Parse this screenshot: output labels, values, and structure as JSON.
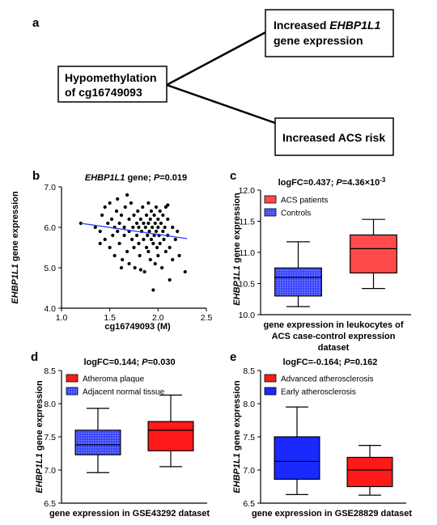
{
  "panel_a": {
    "label": "a",
    "node_center": "Hypomethylation of cg16749093",
    "node_center_lines": [
      "Hypomethylation",
      "of cg16749093"
    ],
    "node_top_lines": [
      "Increased ",
      "EHBP1L1",
      "gene expression"
    ],
    "node_bottom": "Increased ACS risk"
  },
  "colors": {
    "blue": "#2f3cff",
    "red": "#ff1a1a",
    "red_light": "#ff4a4a",
    "black": "#000000"
  },
  "chart_data": [
    {
      "panel": "b",
      "type": "scatter",
      "title_gene": "EHBP1L1",
      "title_rest": " gene; ",
      "title_p": "P",
      "title_pval": "=0.019",
      "xlabel": "cg16749093 (M)",
      "ylabel_gene": "EHBP1L1",
      "ylabel_rest": " gene expression",
      "xlim": [
        1.0,
        2.5
      ],
      "ylim": [
        4.0,
        7.0
      ],
      "xticks": [
        "1.0",
        "1.5",
        "2.0",
        "2.5"
      ],
      "yticks": [
        "4.0",
        "5.0",
        "6.0",
        "7.0"
      ],
      "xtick_values": [
        1.0,
        1.5,
        2.0,
        2.5
      ],
      "ytick_values": [
        4.0,
        5.0,
        6.0,
        7.0
      ],
      "fit_line": {
        "x": [
          1.2,
          2.3
        ],
        "y": [
          6.1,
          5.72
        ]
      },
      "points": [
        [
          1.2,
          6.1
        ],
        [
          1.35,
          6.0
        ],
        [
          1.4,
          5.9
        ],
        [
          1.42,
          6.3
        ],
        [
          1.45,
          5.7
        ],
        [
          1.48,
          6.1
        ],
        [
          1.5,
          5.5
        ],
        [
          1.5,
          6.6
        ],
        [
          1.52,
          6.2
        ],
        [
          1.53,
          5.8
        ],
        [
          1.55,
          6.0
        ],
        [
          1.55,
          5.3
        ],
        [
          1.57,
          6.4
        ],
        [
          1.58,
          5.9
        ],
        [
          1.6,
          6.1
        ],
        [
          1.6,
          5.6
        ],
        [
          1.62,
          6.3
        ],
        [
          1.63,
          5.2
        ],
        [
          1.65,
          6.0
        ],
        [
          1.65,
          5.8
        ],
        [
          1.66,
          6.5
        ],
        [
          1.68,
          5.4
        ],
        [
          1.7,
          6.2
        ],
        [
          1.7,
          5.9
        ],
        [
          1.7,
          5.1
        ],
        [
          1.72,
          6.6
        ],
        [
          1.73,
          5.7
        ],
        [
          1.74,
          6.0
        ],
        [
          1.75,
          5.5
        ],
        [
          1.75,
          6.3
        ],
        [
          1.76,
          5.0
        ],
        [
          1.78,
          6.1
        ],
        [
          1.78,
          5.8
        ],
        [
          1.79,
          6.4
        ],
        [
          1.8,
          5.6
        ],
        [
          1.8,
          6.0
        ],
        [
          1.81,
          5.3
        ],
        [
          1.82,
          6.2
        ],
        [
          1.83,
          5.9
        ],
        [
          1.84,
          6.5
        ],
        [
          1.85,
          5.7
        ],
        [
          1.85,
          6.1
        ],
        [
          1.86,
          4.9
        ],
        [
          1.87,
          6.0
        ],
        [
          1.88,
          5.5
        ],
        [
          1.88,
          6.3
        ],
        [
          1.89,
          5.8
        ],
        [
          1.9,
          6.1
        ],
        [
          1.9,
          5.4
        ],
        [
          1.9,
          6.6
        ],
        [
          1.91,
          5.9
        ],
        [
          1.92,
          5.2
        ],
        [
          1.92,
          6.2
        ],
        [
          1.93,
          5.7
        ],
        [
          1.93,
          6.4
        ],
        [
          1.94,
          6.0
        ],
        [
          1.95,
          5.6
        ],
        [
          1.95,
          4.45
        ],
        [
          1.96,
          6.3
        ],
        [
          1.96,
          5.8
        ],
        [
          1.97,
          5.1
        ],
        [
          1.97,
          6.1
        ],
        [
          1.98,
          5.9
        ],
        [
          1.98,
          6.5
        ],
        [
          1.99,
          5.5
        ],
        [
          2.0,
          6.0
        ],
        [
          2.0,
          5.3
        ],
        [
          2.0,
          6.2
        ],
        [
          2.01,
          5.8
        ],
        [
          2.02,
          6.4
        ],
        [
          2.02,
          5.6
        ],
        [
          2.03,
          6.1
        ],
        [
          2.04,
          5.0
        ],
        [
          2.05,
          5.9
        ],
        [
          2.05,
          6.3
        ],
        [
          2.06,
          5.7
        ],
        [
          2.07,
          6.0
        ],
        [
          2.08,
          5.4
        ],
        [
          2.08,
          6.5
        ],
        [
          2.1,
          5.8
        ],
        [
          2.1,
          6.2
        ],
        [
          2.12,
          5.5
        ],
        [
          2.12,
          4.7
        ],
        [
          2.15,
          6.0
        ],
        [
          2.15,
          5.2
        ],
        [
          2.18,
          5.7
        ],
        [
          2.2,
          5.9
        ],
        [
          2.22,
          5.3
        ],
        [
          2.28,
          4.9
        ],
        [
          1.4,
          5.6
        ],
        [
          1.45,
          6.5
        ],
        [
          1.58,
          6.7
        ],
        [
          1.62,
          5.0
        ],
        [
          1.68,
          6.8
        ],
        [
          1.82,
          4.95
        ],
        [
          2.1,
          6.55
        ]
      ]
    },
    {
      "panel": "c",
      "type": "box",
      "title_prefix": "logFC=0.437; ",
      "title_p": "P",
      "title_pval": "=4.36×10",
      "title_exp": "-3",
      "ylabel_gene": "EHBP1L1",
      "ylabel_rest": " gene expression",
      "xlabel_lines": [
        "gene expression in leukocytes of",
        "ACS case-control expression",
        "dataset"
      ],
      "ylim": [
        10.0,
        12.0
      ],
      "yticks": [
        "10.0",
        "10.5",
        "11.0",
        "11.5",
        "12.0"
      ],
      "ytick_values": [
        10.0,
        10.5,
        11.0,
        11.5,
        12.0
      ],
      "legend": [
        "ACS patients",
        "Controls"
      ],
      "legend_colors": [
        "#ff4a4a",
        "#2f3cff"
      ],
      "boxes": [
        {
          "name": "Controls",
          "min": 10.13,
          "q1": 10.3,
          "median": 10.6,
          "q3": 10.75,
          "max": 11.17,
          "color": "#2f3cff",
          "pattern": "dots"
        },
        {
          "name": "ACS patients",
          "min": 10.42,
          "q1": 10.67,
          "median": 11.06,
          "q3": 11.28,
          "max": 11.53,
          "color": "#ff4a4a",
          "pattern": "none"
        }
      ]
    },
    {
      "panel": "d",
      "type": "box",
      "title_prefix": "logFC=0.144; ",
      "title_p": "P",
      "title_pval": "=0.030",
      "title_exp": "",
      "ylabel_gene": "EHBP1L1",
      "ylabel_rest": " gene expression",
      "xlabel_lines": [
        "gene expression in GSE43292 dataset"
      ],
      "ylim": [
        6.5,
        8.5
      ],
      "yticks": [
        "6.5",
        "7.0",
        "7.5",
        "8.0",
        "8.5"
      ],
      "ytick_values": [
        6.5,
        7.0,
        7.5,
        8.0,
        8.5
      ],
      "legend": [
        "Atheroma plaque",
        "Adjacent normal tissue"
      ],
      "legend_colors": [
        "#ff1a1a",
        "#2f3cff"
      ],
      "boxes": [
        {
          "name": "Adjacent normal tissue",
          "min": 6.96,
          "q1": 7.23,
          "median": 7.38,
          "q3": 7.6,
          "max": 7.93,
          "color": "#2f3cff",
          "pattern": "dots"
        },
        {
          "name": "Atheroma plaque",
          "min": 7.05,
          "q1": 7.29,
          "median": 7.6,
          "q3": 7.73,
          "max": 8.13,
          "color": "#ff1a1a",
          "pattern": "none"
        }
      ]
    },
    {
      "panel": "e",
      "type": "box",
      "title_prefix": "logFC=-0.164; ",
      "title_p": "P",
      "title_pval": "=0.162",
      "title_exp": "",
      "ylabel_gene": "EHBP1L1",
      "ylabel_rest": " gene expression",
      "xlabel_lines": [
        "gene expression in GSE28829 dataset"
      ],
      "ylim": [
        6.5,
        8.5
      ],
      "yticks": [
        "6.5",
        "7.0",
        "7.5",
        "8.0",
        "8.5"
      ],
      "ytick_values": [
        6.5,
        7.0,
        7.5,
        8.0,
        8.5
      ],
      "legend": [
        "Advanced atherosclerosis",
        "Early atherosclerosis"
      ],
      "legend_colors": [
        "#ff1a1a",
        "#1a2aff"
      ],
      "boxes": [
        {
          "name": "Early atherosclerosis",
          "min": 6.63,
          "q1": 6.86,
          "median": 7.13,
          "q3": 7.5,
          "max": 7.95,
          "color": "#1a2aff",
          "pattern": "none"
        },
        {
          "name": "Advanced atherosclerosis",
          "min": 6.62,
          "q1": 6.75,
          "median": 7.0,
          "q3": 7.19,
          "max": 7.37,
          "color": "#ff1a1a",
          "pattern": "none"
        }
      ]
    }
  ],
  "panel_labels": [
    "b",
    "c",
    "d",
    "e"
  ]
}
